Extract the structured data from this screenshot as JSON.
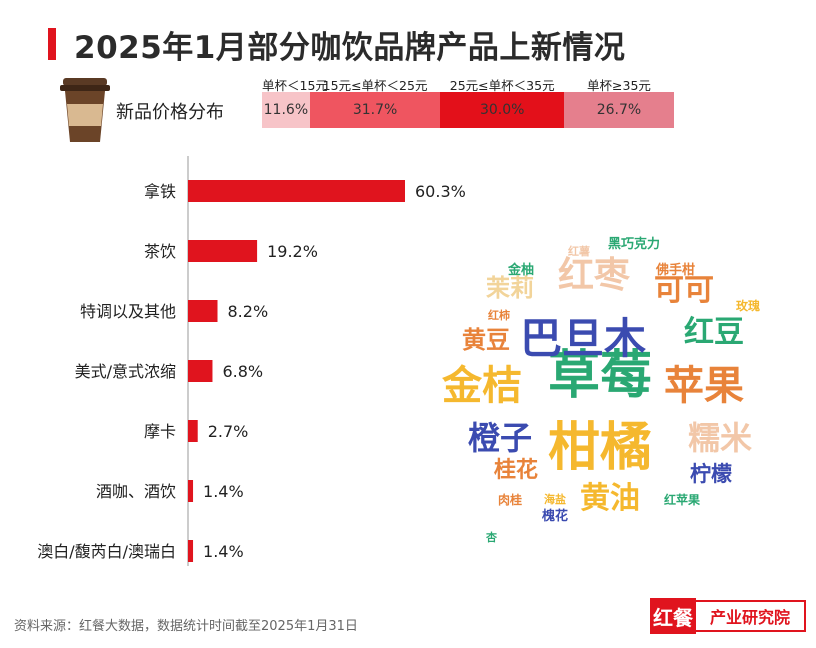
{
  "title": "2025年1月部分咖饮品牌产品上新情况",
  "price_distribution": {
    "label": "新品价格分布",
    "segments": [
      {
        "range": "单杯＜15元",
        "percent": 11.6,
        "text": "11.6%",
        "color": "#f7c4c8"
      },
      {
        "range": "15元≤单杯＜25元",
        "percent": 31.7,
        "text": "31.7%",
        "color": "#ef5560"
      },
      {
        "range": "25元≤单杯＜35元",
        "percent": 30.0,
        "text": "30.0%",
        "color": "#e3101a"
      },
      {
        "range": "单杯≥35元",
        "percent": 26.7,
        "text": "26.7%",
        "color": "#e57f8d"
      }
    ]
  },
  "chart_data": {
    "type": "bar",
    "orientation": "horizontal",
    "categories": [
      "拿铁",
      "茶饮",
      "特调以及其他",
      "美式/意式浓缩",
      "摩卡",
      "酒咖、酒饮",
      "澳白/馥芮白/澳瑞白"
    ],
    "values": [
      60.3,
      19.2,
      8.2,
      6.8,
      2.7,
      1.4,
      1.4
    ],
    "value_labels": [
      "60.3%",
      "19.2%",
      "8.2%",
      "6.8%",
      "2.7%",
      "1.4%",
      "1.4%"
    ],
    "unit": "%",
    "xlim": [
      0,
      100
    ],
    "grid": false,
    "bar_color": "#e0141e"
  },
  "word_cloud": [
    {
      "text": "草莓",
      "color": "#2aa873"
    },
    {
      "text": "柑橘",
      "color": "#f5b82e"
    },
    {
      "text": "巴旦木",
      "color": "#3b4bb0"
    },
    {
      "text": "金桔",
      "color": "#f5b82e"
    },
    {
      "text": "苹果",
      "color": "#e8833a"
    },
    {
      "text": "红枣",
      "color": "#f2c7a8"
    },
    {
      "text": "橙子",
      "color": "#3b4bb0"
    },
    {
      "text": "糯米",
      "color": "#f2c7a8"
    },
    {
      "text": "黄油",
      "color": "#f5b82e"
    },
    {
      "text": "红豆",
      "color": "#2aa873"
    },
    {
      "text": "可可",
      "color": "#e8833a"
    },
    {
      "text": "黄豆",
      "color": "#e8833a"
    },
    {
      "text": "茉莉",
      "color": "#f2d49a"
    },
    {
      "text": "桂花",
      "color": "#e8833a"
    },
    {
      "text": "柠檬",
      "color": "#3b4bb0"
    },
    {
      "text": "黑巧克力",
      "color": "#2aa873"
    },
    {
      "text": "金柚",
      "color": "#2aa873"
    },
    {
      "text": "佛手柑",
      "color": "#e8833a"
    },
    {
      "text": "玫瑰",
      "color": "#f5b82e"
    },
    {
      "text": "红柿",
      "color": "#e8833a"
    },
    {
      "text": "红薯",
      "color": "#f2c7a8"
    },
    {
      "text": "肉桂",
      "color": "#e8833a"
    },
    {
      "text": "海盐",
      "color": "#f5b82e"
    },
    {
      "text": "红苹果",
      "color": "#2aa873"
    },
    {
      "text": "槐花",
      "color": "#3b4bb0"
    },
    {
      "text": "杏",
      "color": "#2aa873"
    }
  ],
  "footer": "资料来源：红餐大数据，数据统计时间截至2025年1月31日",
  "logo": {
    "mark": "红餐",
    "text": "产业研究院"
  }
}
